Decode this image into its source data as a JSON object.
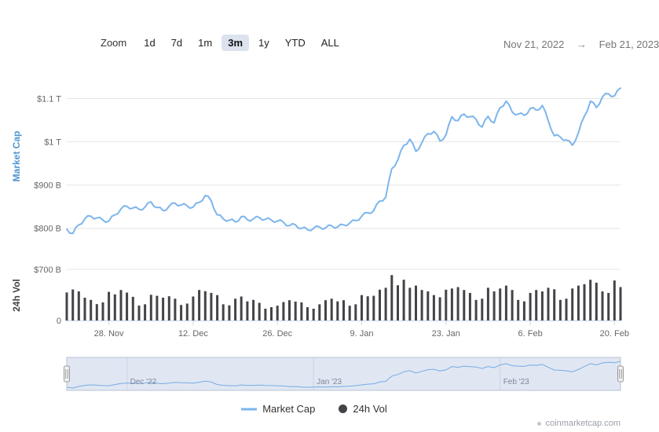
{
  "toolbar": {
    "zoom_label": "Zoom",
    "buttons": [
      {
        "label": "1d",
        "selected": false
      },
      {
        "label": "7d",
        "selected": false
      },
      {
        "label": "1m",
        "selected": false
      },
      {
        "label": "3m",
        "selected": true
      },
      {
        "label": "1y",
        "selected": false
      },
      {
        "label": "YTD",
        "selected": false
      },
      {
        "label": "ALL",
        "selected": false
      }
    ],
    "date_range": {
      "from": "Nov 21, 2022",
      "arrow": "→",
      "to": "Feb 21, 2023"
    }
  },
  "legend": {
    "position": "bottom",
    "items": [
      {
        "label": "Market Cap",
        "symbol": "line",
        "color": "#7cb5ec"
      },
      {
        "label": "24h Vol",
        "symbol": "circle",
        "color": "#434348"
      }
    ]
  },
  "watermark": {
    "text": "coinmarketcap.com"
  },
  "chart_data": {
    "type": "line",
    "title": "",
    "grid": true,
    "legend_position": "bottom",
    "x": [
      "2022-11-21",
      "2022-11-22",
      "2022-11-23",
      "2022-11-24",
      "2022-11-25",
      "2022-11-26",
      "2022-11-27",
      "2022-11-28",
      "2022-11-29",
      "2022-11-30",
      "2022-12-01",
      "2022-12-02",
      "2022-12-03",
      "2022-12-04",
      "2022-12-05",
      "2022-12-06",
      "2022-12-07",
      "2022-12-08",
      "2022-12-09",
      "2022-12-10",
      "2022-12-11",
      "2022-12-12",
      "2022-12-13",
      "2022-12-14",
      "2022-12-15",
      "2022-12-16",
      "2022-12-17",
      "2022-12-18",
      "2022-12-19",
      "2022-12-20",
      "2022-12-21",
      "2022-12-22",
      "2022-12-23",
      "2022-12-24",
      "2022-12-25",
      "2022-12-26",
      "2022-12-27",
      "2022-12-28",
      "2022-12-29",
      "2022-12-30",
      "2022-12-31",
      "2023-01-01",
      "2023-01-02",
      "2023-01-03",
      "2023-01-04",
      "2023-01-05",
      "2023-01-06",
      "2023-01-07",
      "2023-01-08",
      "2023-01-09",
      "2023-01-10",
      "2023-01-11",
      "2023-01-12",
      "2023-01-13",
      "2023-01-14",
      "2023-01-15",
      "2023-01-16",
      "2023-01-17",
      "2023-01-18",
      "2023-01-19",
      "2023-01-20",
      "2023-01-21",
      "2023-01-22",
      "2023-01-23",
      "2023-01-24",
      "2023-01-25",
      "2023-01-26",
      "2023-01-27",
      "2023-01-28",
      "2023-01-29",
      "2023-01-30",
      "2023-01-31",
      "2023-02-01",
      "2023-02-02",
      "2023-02-03",
      "2023-02-04",
      "2023-02-05",
      "2023-02-06",
      "2023-02-07",
      "2023-02-08",
      "2023-02-09",
      "2023-02-10",
      "2023-02-11",
      "2023-02-12",
      "2023-02-13",
      "2023-02-14",
      "2023-02-15",
      "2023-02-16",
      "2023-02-17",
      "2023-02-18",
      "2023-02-19",
      "2023-02-20",
      "2023-02-21"
    ],
    "series": [
      {
        "name": "Market Cap",
        "type": "line",
        "unit": "billion USD",
        "color": "#7cb5ec",
        "values": [
          798,
          788,
          808,
          822,
          828,
          824,
          819,
          817,
          831,
          845,
          851,
          847,
          844,
          849,
          861,
          848,
          841,
          851,
          858,
          854,
          852,
          849,
          860,
          876,
          864,
          831,
          822,
          819,
          815,
          827,
          820,
          822,
          825,
          821,
          819,
          817,
          814,
          806,
          808,
          800,
          797,
          800,
          803,
          801,
          806,
          803,
          808,
          812,
          818,
          828,
          836,
          841,
          863,
          872,
          938,
          958,
          992,
          1006,
          978,
          998,
          1019,
          1024,
          1002,
          1016,
          1058,
          1049,
          1064,
          1058,
          1052,
          1034,
          1059,
          1044,
          1079,
          1094,
          1069,
          1064,
          1061,
          1077,
          1073,
          1084,
          1049,
          1014,
          1011,
          1004,
          992,
          1021,
          1059,
          1094,
          1079,
          1104,
          1111,
          1106,
          1124
        ]
      },
      {
        "name": "24h Vol",
        "type": "bar",
        "unit": "billion USD",
        "color": "#434348",
        "values": [
          385,
          425,
          398,
          312,
          282,
          224,
          248,
          392,
          358,
          418,
          382,
          324,
          205,
          222,
          352,
          338,
          312,
          332,
          298,
          212,
          232,
          328,
          418,
          402,
          378,
          348,
          222,
          208,
          298,
          328,
          262,
          282,
          242,
          162,
          182,
          202,
          252,
          278,
          258,
          248,
          182,
          162,
          222,
          278,
          298,
          262,
          278,
          202,
          222,
          348,
          332,
          338,
          422,
          448,
          622,
          482,
          558,
          448,
          478,
          418,
          398,
          348,
          318,
          422,
          438,
          458,
          418,
          378,
          282,
          298,
          448,
          398,
          438,
          478,
          418,
          282,
          262,
          378,
          418,
          398,
          448,
          428,
          282,
          298,
          438,
          478,
          498,
          558,
          518,
          398,
          378,
          548,
          458
        ]
      }
    ],
    "main_axis": {
      "title": "Market Cap",
      "title_color": "#4f96d2",
      "range": [
        765,
        1168
      ],
      "ticks": [
        {
          "label": "$800 B",
          "value": 800
        },
        {
          "label": "$900 B",
          "value": 900
        },
        {
          "label": "$1 T",
          "value": 1000
        },
        {
          "label": "$1.1 T",
          "value": 1100
        }
      ]
    },
    "vol_axis": {
      "title": "24h Vol",
      "title_color": "#434348",
      "range": [
        0,
        700
      ],
      "ticks": [
        {
          "label": "0",
          "value": 0
        },
        {
          "label": "$700 B",
          "value": 700
        }
      ]
    },
    "x_ticks": [
      {
        "label": "28. Nov",
        "index": 7
      },
      {
        "label": "12. Dec",
        "index": 21
      },
      {
        "label": "26. Dec",
        "index": 35
      },
      {
        "label": "9. Jan",
        "index": 49
      },
      {
        "label": "23. Jan",
        "index": 63
      },
      {
        "label": "6. Feb",
        "index": 77
      },
      {
        "label": "20. Feb",
        "index": 91
      }
    ],
    "navigator": {
      "months": [
        {
          "label": "Dec '22",
          "index": 10
        },
        {
          "label": "Jan '23",
          "index": 41
        },
        {
          "label": "Feb '23",
          "index": 72
        }
      ]
    },
    "colors": {
      "grid": "#e6e6e6",
      "axis_line": "#ccd6eb",
      "tick_text": "#666666",
      "navigator_mask": "rgba(102,133,194,0.2)",
      "navigator_outline": "#b9c1d4"
    }
  }
}
